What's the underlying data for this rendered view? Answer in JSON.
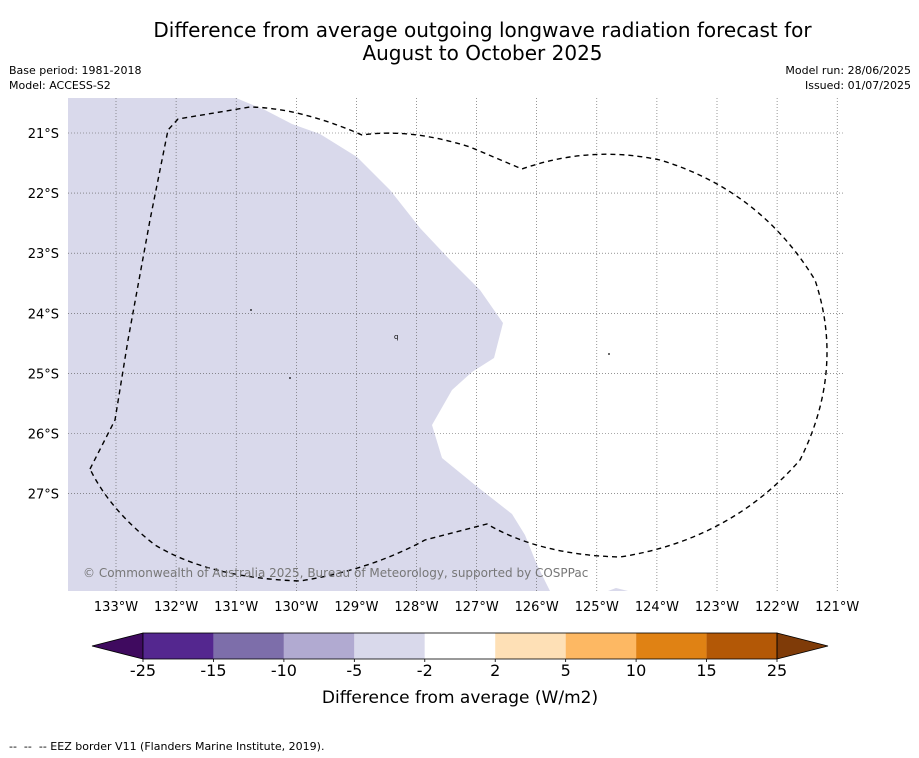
{
  "title_line1": "Difference from average outgoing longwave radiation forecast for",
  "title_line2": "August to October 2025",
  "base_period": "Base period: 1981-2018",
  "model": "Model: ACCESS-S2",
  "model_run": "Model run: 28/06/2025",
  "issued": "Issued: 01/07/2025",
  "copyright": "© Commonwealth of Australia 2025, Bureau of Meteorology, supported by COSPPac",
  "footnote": "--  --  -- EEZ border V11 (Flanders Marine Institute, 2019).",
  "map": {
    "lat_labels": [
      "21°S",
      "22°S",
      "23°S",
      "24°S",
      "25°S",
      "26°S",
      "27°S"
    ],
    "lon_labels": [
      "133°W",
      "132°W",
      "131°W",
      "130°W",
      "129°W",
      "128°W",
      "127°W",
      "126°W",
      "125°W",
      "124°W",
      "123°W",
      "122°W",
      "121°W"
    ],
    "shaded_category": "-5 to -2",
    "grid": true
  },
  "colorbar": {
    "title": "Difference from average (W/m2)",
    "tick_labels": [
      "-25",
      "-15",
      "-10",
      "-5",
      "-2",
      "2",
      "5",
      "10",
      "15",
      "25"
    ],
    "colors": [
      "#3f0a5f",
      "#54278f",
      "#7d6eaa",
      "#b1aad1",
      "#d9d9eb",
      "#ffffff",
      "#fee0b6",
      "#fdb863",
      "#e08214",
      "#b35806",
      "#7f3b08"
    ]
  }
}
